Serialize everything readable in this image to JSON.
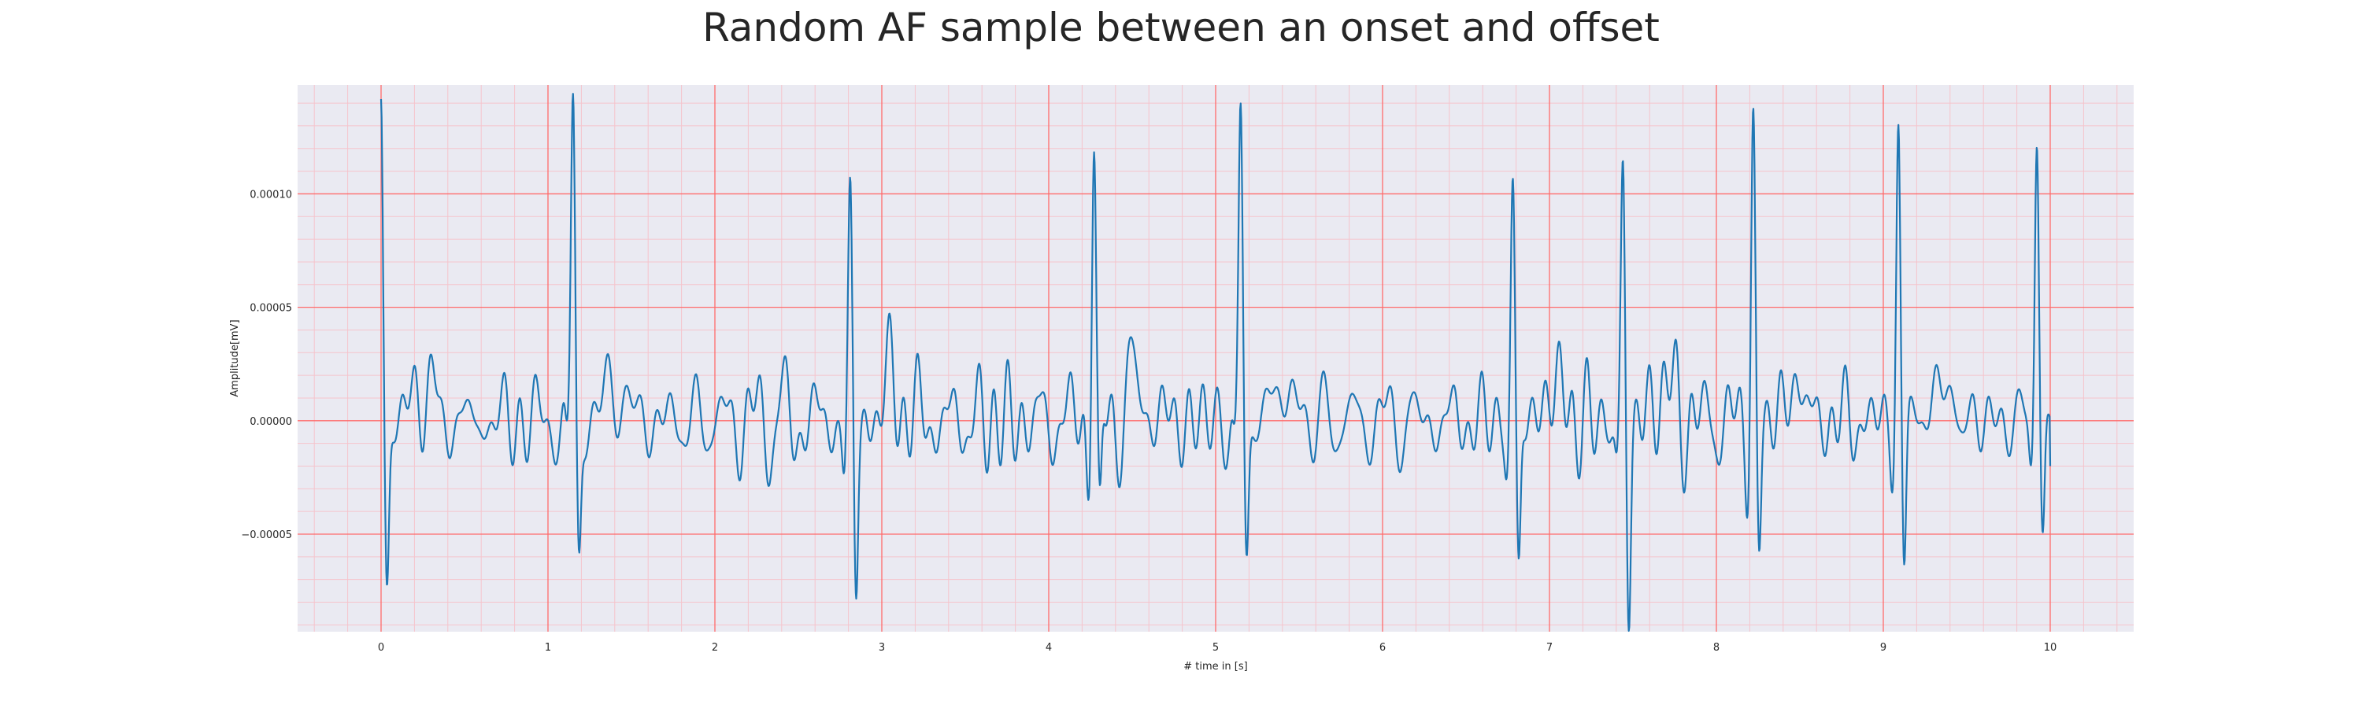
{
  "chart_data": {
    "type": "line",
    "title": "Random AF sample between an onset and offset",
    "xlabel": "# time in [s]",
    "ylabel": "Amplitude[mV]",
    "xlim": [
      -0.5,
      10.5
    ],
    "ylim": [
      -9.3e-05,
      0.000148
    ],
    "x_ticks": [
      0,
      1,
      2,
      3,
      4,
      5,
      6,
      7,
      8,
      9,
      10
    ],
    "x_tick_labels": [
      "0",
      "1",
      "2",
      "3",
      "4",
      "5",
      "6",
      "7",
      "8",
      "9",
      "10"
    ],
    "y_ticks": [
      -5e-05,
      0.0,
      5e-05,
      0.0001
    ],
    "y_tick_labels": [
      "−0.00005",
      "0.00000",
      "0.00005",
      "0.00010"
    ],
    "grid": true,
    "minor_grid": true,
    "series": [
      {
        "color": "#1f77b4",
        "x_start": 0,
        "x_end": 10,
        "beats": [
          {
            "t": 0.0,
            "r": 0.000132,
            "s": -6.7e-05
          },
          {
            "t": 1.15,
            "r": 0.000138,
            "s": -5.7e-05
          },
          {
            "t": 2.81,
            "r": 9.1e-05,
            "s": -7.6e-05
          },
          {
            "t": 4.27,
            "r": 0.00013,
            "s": -6e-05
          },
          {
            "t": 5.15,
            "r": 0.000134,
            "s": -5.7e-05
          },
          {
            "t": 6.78,
            "r": 0.000104,
            "s": -7e-05
          },
          {
            "t": 7.44,
            "r": 0.000107,
            "s": -8.2e-05
          },
          {
            "t": 8.22,
            "r": 0.000131,
            "s": -6.1e-05
          },
          {
            "t": 9.09,
            "r": 0.000132,
            "s": -6.6e-05
          },
          {
            "t": 9.92,
            "r": 0.000132,
            "s": -5.2e-05
          }
        ],
        "end_value": -2e-05
      }
    ]
  },
  "colors": {
    "plot_background": "#eaeaf2",
    "major_grid": "#ff6b6b",
    "minor_grid": "#f5c4cc",
    "line": "#1f77b4"
  }
}
